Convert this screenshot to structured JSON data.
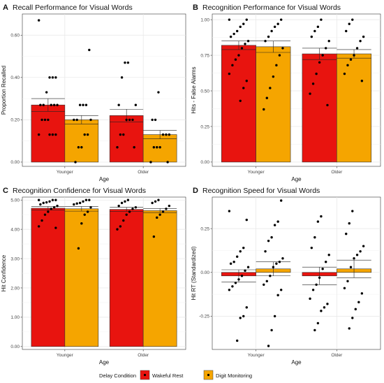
{
  "legend": {
    "title": "Delay Condition",
    "items": [
      {
        "label": "Wakeful Rest",
        "color": "#E8140F"
      },
      {
        "label": "Digit Monitoring",
        "color": "#F5A500"
      }
    ]
  },
  "chart_data": [
    {
      "type": "bar",
      "letter": "A",
      "title": "Recall Performance for Visual Words",
      "xlabel": "Age",
      "ylabel": "Proportion Recalled",
      "categories": [
        "Younger",
        "Older"
      ],
      "ylim": [
        -0.02,
        0.7
      ],
      "yticks": [
        0.0,
        0.2,
        0.4,
        0.6
      ],
      "yticklabels": [
        "0.00",
        "0.20",
        "0.40",
        "0.60"
      ],
      "series": [
        {
          "name": "Wakeful Rest",
          "values": [
            0.27,
            0.22
          ],
          "err": [
            0.03,
            0.03
          ]
        },
        {
          "name": "Digit Monitoring",
          "values": [
            0.2,
            0.13
          ],
          "err": [
            0.02,
            0.02
          ]
        }
      ],
      "points": [
        [
          [
            0.67,
            0.4,
            0.4,
            0.4,
            0.33,
            0.27,
            0.27,
            0.27,
            0.27,
            0.27,
            0.2,
            0.2,
            0.2,
            0.13,
            0.13,
            0.13,
            0.13
          ],
          [
            0.53,
            0.27,
            0.27,
            0.27,
            0.2,
            0.2,
            0.2,
            0.13,
            0.13,
            0.07,
            0.07,
            0.0
          ]
        ],
        [
          [
            0.47,
            0.47,
            0.4,
            0.27,
            0.27,
            0.2,
            0.2,
            0.2,
            0.13,
            0.13,
            0.07,
            0.07
          ],
          [
            0.33,
            0.2,
            0.2,
            0.13,
            0.13,
            0.13,
            0.07,
            0.07,
            0.07,
            0.0,
            0.0
          ]
        ]
      ]
    },
    {
      "type": "bar",
      "letter": "B",
      "title": "Recognition Performance for Visual Words",
      "xlabel": "Age",
      "ylabel": "Hits - False Alarms",
      "categories": [
        "Younger",
        "Older"
      ],
      "ylim": [
        -0.03,
        1.04
      ],
      "yticks": [
        0.0,
        0.25,
        0.5,
        0.75,
        1.0
      ],
      "yticklabels": [
        "0.00",
        "0.25",
        "0.50",
        "0.75",
        "1.00"
      ],
      "series": [
        {
          "name": "Wakeful Rest",
          "values": [
            0.82,
            0.76
          ],
          "err": [
            0.03,
            0.04
          ]
        },
        {
          "name": "Digit Monitoring",
          "values": [
            0.81,
            0.76
          ],
          "err": [
            0.04,
            0.03
          ]
        }
      ],
      "points": [
        [
          [
            1.0,
            1.0,
            0.97,
            0.95,
            0.92,
            0.9,
            0.88,
            0.85,
            0.83,
            0.8,
            0.75,
            0.72,
            0.68,
            0.62,
            0.57,
            0.52,
            0.43
          ],
          [
            1.0,
            0.97,
            0.95,
            0.92,
            0.88,
            0.85,
            0.8,
            0.75,
            0.68,
            0.6,
            0.52,
            0.45,
            0.37
          ]
        ],
        [
          [
            1.0,
            0.95,
            0.92,
            0.88,
            0.85,
            0.8,
            0.75,
            0.7,
            0.62,
            0.55,
            0.48,
            0.4
          ],
          [
            1.0,
            0.97,
            0.92,
            0.88,
            0.85,
            0.8,
            0.75,
            0.72,
            0.68,
            0.62,
            0.57
          ]
        ]
      ]
    },
    {
      "type": "bar",
      "letter": "C",
      "title": "Recognition Confidence for Visual Words",
      "xlabel": "Age",
      "ylabel": "Hit Confidence",
      "categories": [
        "Younger",
        "Older"
      ],
      "ylim": [
        -0.1,
        5.1
      ],
      "yticks": [
        0,
        1,
        2,
        3,
        4,
        5
      ],
      "yticklabels": [
        "0.00",
        "1.00",
        "2.00",
        "3.00",
        "4.00",
        "5.00"
      ],
      "series": [
        {
          "name": "Wakeful Rest",
          "values": [
            4.72,
            4.68
          ],
          "err": [
            0.06,
            0.07
          ]
        },
        {
          "name": "Digit Monitoring",
          "values": [
            4.7,
            4.64
          ],
          "err": [
            0.08,
            0.07
          ]
        }
      ],
      "points": [
        [
          [
            5.0,
            5.0,
            5.0,
            4.95,
            4.92,
            4.9,
            4.85,
            4.8,
            4.75,
            4.7,
            4.6,
            4.5,
            4.3,
            4.1,
            4.05
          ],
          [
            5.0,
            5.0,
            4.95,
            4.9,
            4.88,
            4.85,
            4.75,
            4.6,
            4.5,
            4.2,
            3.35
          ]
        ],
        [
          [
            5.0,
            4.95,
            4.9,
            4.8,
            4.75,
            4.7,
            4.6,
            4.5,
            4.3,
            4.1,
            4.0
          ],
          [
            5.0,
            4.95,
            4.9,
            4.8,
            4.7,
            4.6,
            4.5,
            4.4,
            3.75
          ]
        ]
      ]
    },
    {
      "type": "bar",
      "letter": "D",
      "title": "Recognition Speed for Visual Words",
      "xlabel": "Age",
      "ylabel": "Hit RT (Standardized)",
      "categories": [
        "Younger",
        "Older"
      ],
      "ylim": [
        -0.44,
        0.43
      ],
      "yticks": [
        -0.25,
        0.0,
        0.25
      ],
      "yticklabels": [
        "-0.25",
        "0.00",
        "0.25"
      ],
      "series": [
        {
          "name": "Wakeful Rest",
          "values": [
            -0.02,
            -0.02
          ],
          "err": [
            0.035,
            0.05
          ]
        },
        {
          "name": "Digit Monitoring",
          "values": [
            0.02,
            0.02
          ],
          "err": [
            0.04,
            0.05
          ]
        }
      ],
      "points": [
        [
          [
            0.35,
            0.3,
            0.14,
            0.12,
            0.09,
            0.06,
            0.05,
            0.03,
            0.01,
            -0.02,
            -0.04,
            -0.06,
            -0.08,
            -0.1,
            -0.2,
            -0.25,
            -0.26,
            -0.39
          ],
          [
            0.41,
            0.29,
            0.27,
            0.2,
            0.18,
            0.12,
            0.08,
            0.06,
            0.05,
            0.03,
            -0.02,
            -0.05,
            -0.07,
            -0.1,
            -0.13,
            -0.25,
            -0.33,
            -0.42
          ]
        ],
        [
          [
            0.32,
            0.29,
            0.2,
            0.14,
            0.1,
            0.06,
            0.02,
            -0.03,
            -0.07,
            -0.1,
            -0.15,
            -0.18,
            -0.2,
            -0.22,
            -0.29,
            -0.33
          ],
          [
            0.35,
            0.28,
            0.22,
            0.15,
            0.12,
            0.1,
            0.08,
            0.03,
            -0.05,
            -0.09,
            -0.12,
            -0.17,
            -0.21,
            -0.26,
            -0.32
          ]
        ]
      ]
    }
  ]
}
